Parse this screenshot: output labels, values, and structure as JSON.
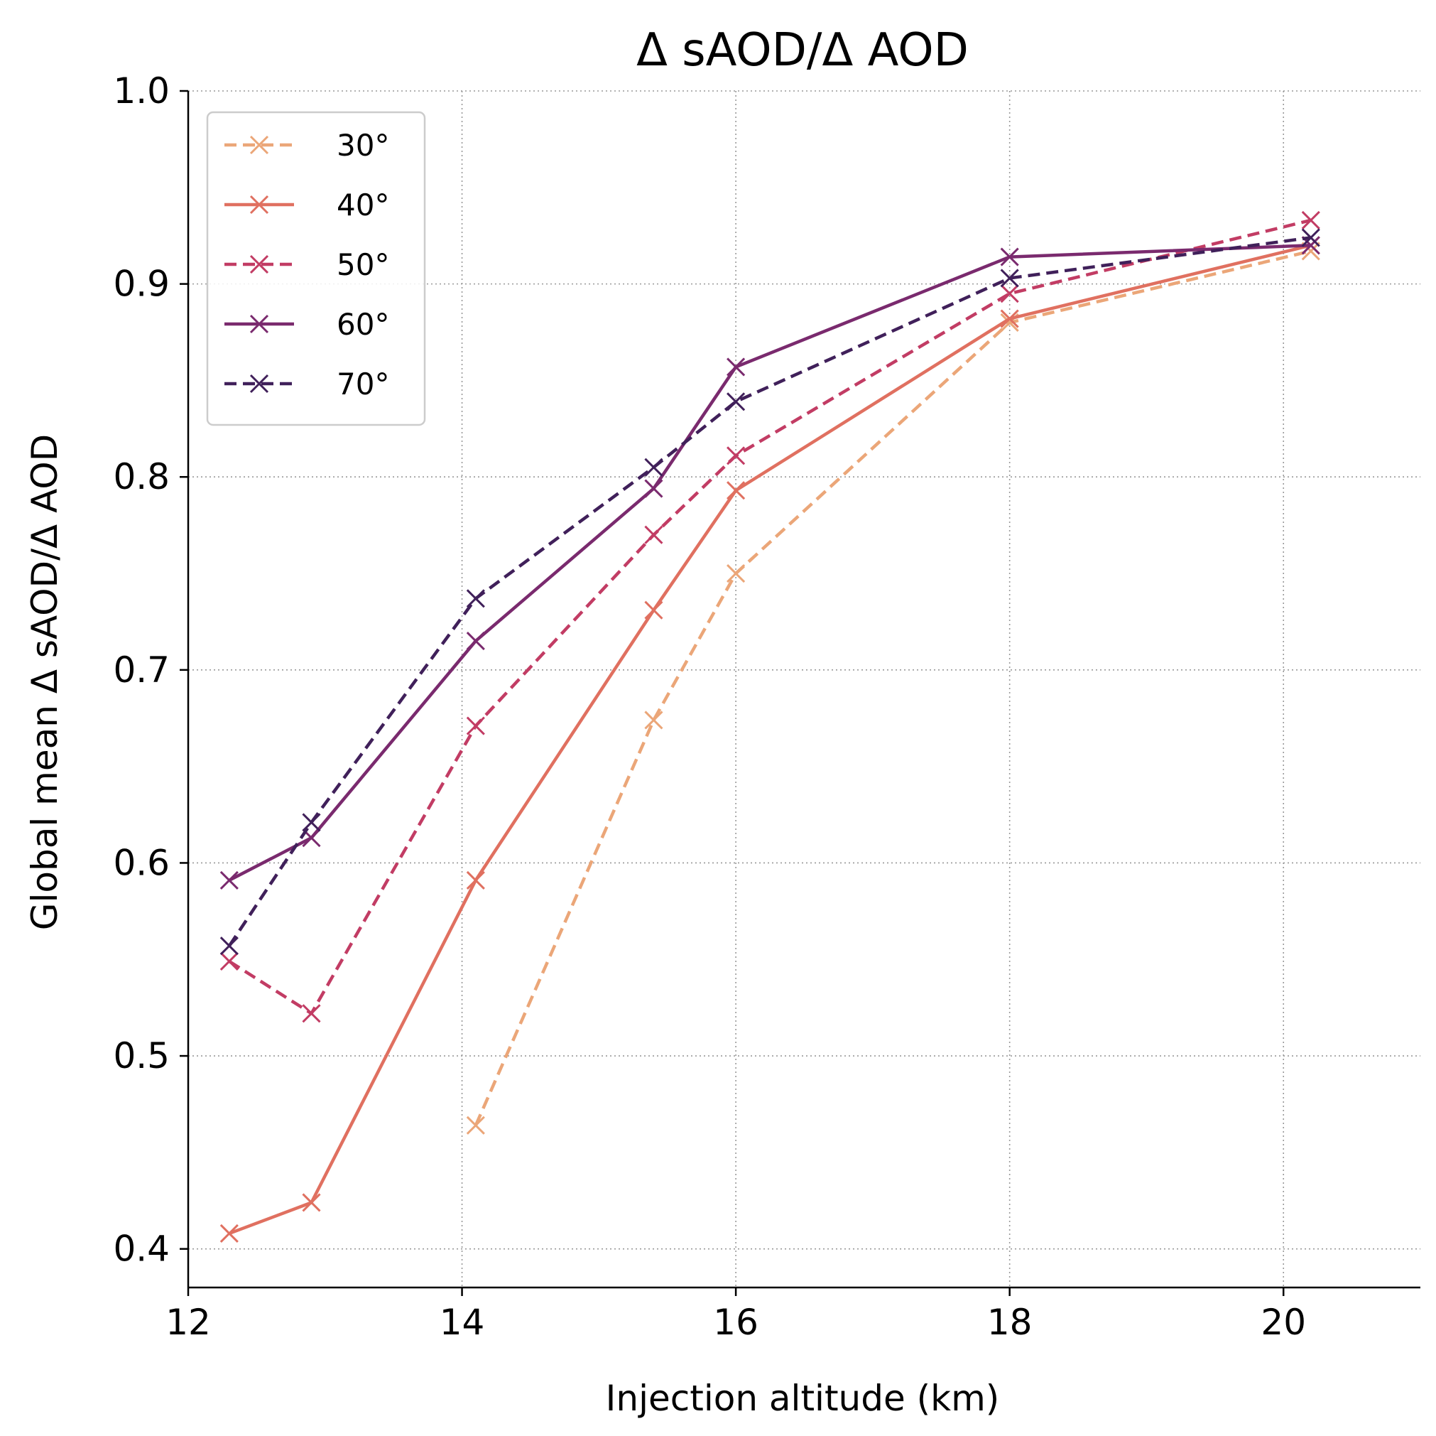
{
  "chart_data": {
    "type": "line",
    "title": "Δ sAOD/Δ AOD",
    "xlabel": "Injection altitude (km)",
    "ylabel": "Global mean Δ sAOD/Δ AOD",
    "xlim": [
      12,
      21
    ],
    "ylim": [
      0.38,
      1.0
    ],
    "xticks": [
      12,
      14,
      16,
      18,
      20
    ],
    "yticks": [
      0.4,
      0.5,
      0.6,
      0.7,
      0.8,
      0.9,
      1.0
    ],
    "xtick_labels": [
      "12",
      "14",
      "16",
      "18",
      "20"
    ],
    "ytick_labels": [
      "0.4",
      "0.5",
      "0.6",
      "0.7",
      "0.8",
      "0.9",
      "1.0"
    ],
    "grid": true,
    "legend_position": "top-left",
    "series": [
      {
        "name": "30°",
        "color": "#eba678",
        "dashed": true,
        "x": [
          14.1,
          15.4,
          16.0,
          18.0,
          20.2
        ],
        "y": [
          0.464,
          0.674,
          0.75,
          0.88,
          0.917
        ]
      },
      {
        "name": "40°",
        "color": "#e07060",
        "dashed": false,
        "x": [
          12.3,
          12.9,
          14.1,
          15.4,
          16.0,
          18.0,
          20.2
        ],
        "y": [
          0.408,
          0.424,
          0.591,
          0.731,
          0.793,
          0.882,
          0.92
        ]
      },
      {
        "name": "50°",
        "color": "#c23c64",
        "dashed": true,
        "x": [
          12.3,
          12.9,
          14.1,
          15.4,
          16.0,
          18.0,
          20.2
        ],
        "y": [
          0.549,
          0.522,
          0.671,
          0.77,
          0.811,
          0.895,
          0.933
        ]
      },
      {
        "name": "60°",
        "color": "#7a2a6e",
        "dashed": false,
        "x": [
          12.3,
          12.9,
          14.1,
          15.4,
          16.0,
          18.0,
          20.2
        ],
        "y": [
          0.591,
          0.613,
          0.715,
          0.794,
          0.857,
          0.914,
          0.92
        ]
      },
      {
        "name": "70°",
        "color": "#40205a",
        "dashed": true,
        "x": [
          12.3,
          12.9,
          14.1,
          15.4,
          16.0,
          18.0,
          20.2
        ],
        "y": [
          0.557,
          0.621,
          0.737,
          0.805,
          0.839,
          0.903,
          0.924
        ]
      }
    ]
  }
}
